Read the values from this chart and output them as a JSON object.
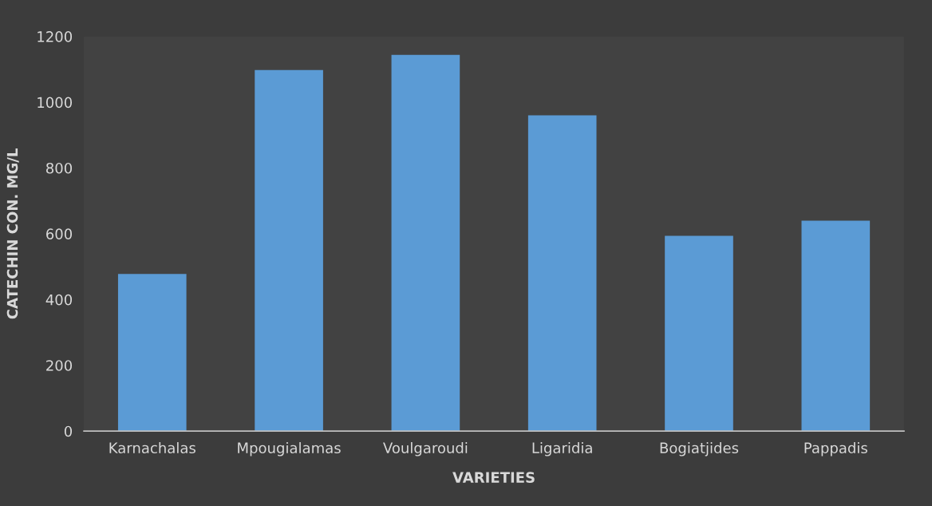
{
  "chart_data": {
    "type": "bar",
    "xlabel": "VARIETIES",
    "ylabel": "CATECHIN CON. MG/L",
    "categories": [
      "Karnachalas",
      "Mpougialamas",
      "Voulgaroudi",
      "Ligaridia",
      "Bogiatjides",
      "Pappadis"
    ],
    "values": [
      478,
      1098,
      1144,
      960,
      594,
      640
    ],
    "color": "#5b9bd5",
    "ylim": [
      0,
      1200
    ],
    "yticks": [
      0,
      200,
      400,
      600,
      800,
      1000,
      1200
    ],
    "grid": false
  }
}
